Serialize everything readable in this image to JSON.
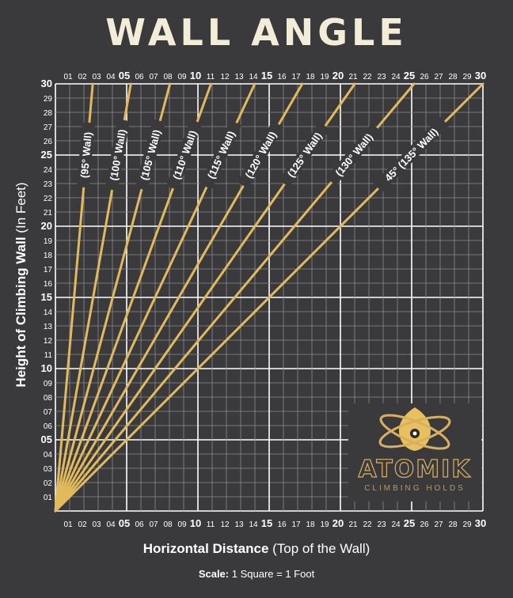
{
  "title": "WALL ANGLE",
  "axis_label_y": "Height of Climbing Wall",
  "axis_label_y_unit": "(In Feet)",
  "axis_label_x": "Horizontal Distance",
  "axis_label_x_note": "(Top of the Wall)",
  "scale_label": "Scale:",
  "scale_value": "1 Square = 1 Foot",
  "logo": {
    "name": "ATOMIK",
    "tagline": "CLIMBING HOLDS",
    "icon": "atom-climbing-hold-icon"
  },
  "colors": {
    "background": "#3a3a3c",
    "grid": "#8c8c8e",
    "line": "#e2ba5c",
    "accent": "#d9b060"
  },
  "chart_data": {
    "type": "line",
    "x_range": [
      0,
      30
    ],
    "y_range": [
      0,
      30
    ],
    "x_ticks": [
      "01",
      "02",
      "03",
      "04",
      "05",
      "06",
      "07",
      "08",
      "09",
      "10",
      "11",
      "12",
      "13",
      "14",
      "15",
      "16",
      "17",
      "18",
      "19",
      "20",
      "21",
      "22",
      "23",
      "24",
      "25",
      "26",
      "27",
      "28",
      "29",
      "30"
    ],
    "y_ticks": [
      "01",
      "02",
      "03",
      "04",
      "05",
      "06",
      "07",
      "08",
      "09",
      "10",
      "11",
      "12",
      "13",
      "14",
      "15",
      "16",
      "17",
      "18",
      "19",
      "20",
      "21",
      "22",
      "23",
      "24",
      "25",
      "26",
      "27",
      "28",
      "29",
      "30"
    ],
    "major_ticks": [
      "05",
      "10",
      "15",
      "20",
      "25",
      "30"
    ],
    "grid": true,
    "series": [
      {
        "name": "(95° Wall)",
        "top_horizontal_distance": 2.62,
        "top_height": 30
      },
      {
        "name": "(100° Wall)",
        "top_horizontal_distance": 5.29,
        "top_height": 30
      },
      {
        "name": "(105° Wall)",
        "top_horizontal_distance": 8.04,
        "top_height": 30
      },
      {
        "name": "(110° Wall)",
        "top_horizontal_distance": 10.92,
        "top_height": 30
      },
      {
        "name": "(115° Wall)",
        "top_horizontal_distance": 13.99,
        "top_height": 30
      },
      {
        "name": "(120° Wall)",
        "top_horizontal_distance": 17.32,
        "top_height": 30
      },
      {
        "name": "(125° Wall)",
        "top_horizontal_distance": 21.01,
        "top_height": 30
      },
      {
        "name": "(130° Wall)",
        "top_horizontal_distance": 25.17,
        "top_height": 30
      },
      {
        "name": "45° (135° Wall)",
        "top_horizontal_distance": 30,
        "top_height": 30
      }
    ]
  }
}
